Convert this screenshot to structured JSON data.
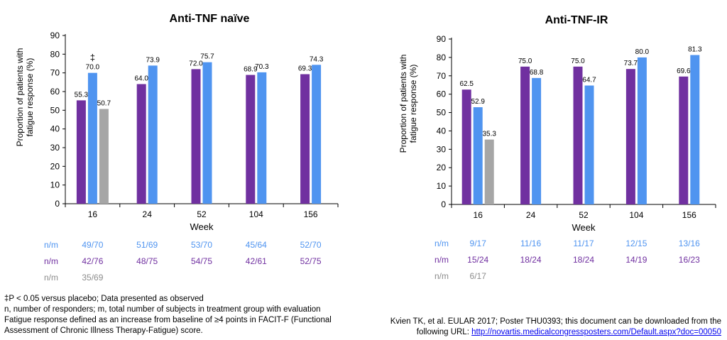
{
  "colors": {
    "purple": "#7030A0",
    "blue": "#4F94F0",
    "gray": "#A6A6A6",
    "nm_blue": "#4F94F0",
    "nm_purple": "#7030A0",
    "nm_gray": "#8C8C8C"
  },
  "chart_data": [
    {
      "type": "bar",
      "title": "Anti-TNF naïve",
      "xlabel": "Week",
      "ylabel": "Proportion of patients with fatigue response (%)",
      "ylabel_lines": [
        "Proportion of patients with",
        "fatigue response (%)"
      ],
      "ylim": [
        0,
        90
      ],
      "yticks": [
        0,
        10,
        20,
        30,
        40,
        50,
        60,
        70,
        80,
        90
      ],
      "grid": false,
      "categories": [
        "16",
        "24",
        "52",
        "104",
        "156"
      ],
      "series": [
        {
          "color_key": "purple",
          "values": [
            55.3,
            64.0,
            72.0,
            68.9,
            69.3
          ],
          "labels": [
            "55.3",
            "64.0",
            "72.0",
            "68.9",
            "69.3"
          ]
        },
        {
          "color_key": "blue",
          "values": [
            70.0,
            73.9,
            75.7,
            70.3,
            74.3
          ],
          "labels": [
            "70.0",
            "73.9",
            "75.7",
            "70.3",
            "74.3"
          ]
        },
        {
          "color_key": "gray",
          "values": [
            50.7,
            null,
            null,
            null,
            null
          ],
          "labels": [
            "50.7",
            "",
            "",
            "",
            ""
          ]
        }
      ],
      "annotation": {
        "text": "‡",
        "category": 0
      },
      "nm_label": "n/m",
      "nm_rows": [
        {
          "color_key": "nm_blue",
          "values": [
            "49/70",
            "51/69",
            "53/70",
            "45/64",
            "52/70"
          ]
        },
        {
          "color_key": "nm_purple",
          "values": [
            "42/76",
            "48/75",
            "54/75",
            "42/61",
            "52/75"
          ]
        },
        {
          "color_key": "nm_gray",
          "values": [
            "35/69",
            "",
            "",
            "",
            ""
          ]
        }
      ]
    },
    {
      "type": "bar",
      "title": "Anti-TNF-IR",
      "xlabel": "Week",
      "ylabel": "Proportion of patients with fatigue response (%)",
      "ylabel_lines": [
        "Proportion of patients with",
        "fatigue response (%)"
      ],
      "ylim": [
        0,
        90
      ],
      "yticks": [
        0,
        10,
        20,
        30,
        40,
        50,
        60,
        70,
        80,
        90
      ],
      "grid": false,
      "categories": [
        "16",
        "24",
        "52",
        "104",
        "156"
      ],
      "series": [
        {
          "color_key": "purple",
          "values": [
            62.5,
            75.0,
            75.0,
            73.7,
            69.6
          ],
          "labels": [
            "62.5",
            "75.0",
            "75.0",
            "73.7",
            "69.6"
          ]
        },
        {
          "color_key": "blue",
          "values": [
            52.9,
            68.8,
            64.7,
            80.0,
            81.3
          ],
          "labels": [
            "52.9",
            "68.8",
            "64.7",
            "80.0",
            "81.3"
          ]
        },
        {
          "color_key": "gray",
          "values": [
            35.3,
            null,
            null,
            null,
            null
          ],
          "labels": [
            "35.3",
            "",
            "",
            "",
            ""
          ]
        }
      ],
      "nm_label": "n/m",
      "nm_rows": [
        {
          "color_key": "nm_blue",
          "values": [
            "9/17",
            "11/16",
            "11/17",
            "12/15",
            "13/16"
          ]
        },
        {
          "color_key": "nm_purple",
          "values": [
            "15/24",
            "18/24",
            "18/24",
            "14/19",
            "16/23"
          ]
        },
        {
          "color_key": "nm_gray",
          "values": [
            "6/17",
            "",
            "",
            "",
            ""
          ]
        }
      ]
    }
  ],
  "footnotes": {
    "line1": "‡P < 0.05 versus placebo; Data presented as observed",
    "line2": "n, number of responders; m, total number of subjects in treatment group with evaluation",
    "line3": "Fatigue response defined as an increase from baseline of ≥4 points in FACIT-F (Functional",
    "line4": "Assessment of Chronic Illness Therapy-Fatigue) score."
  },
  "citation": {
    "line1": "Kvien TK, et al. EULAR 2017; Poster THU0393; this document can be downloaded from the",
    "line2_prefix": "following URL: ",
    "url": "http://novartis.medicalcongressposters.com/Default.aspx?doc=00050"
  }
}
